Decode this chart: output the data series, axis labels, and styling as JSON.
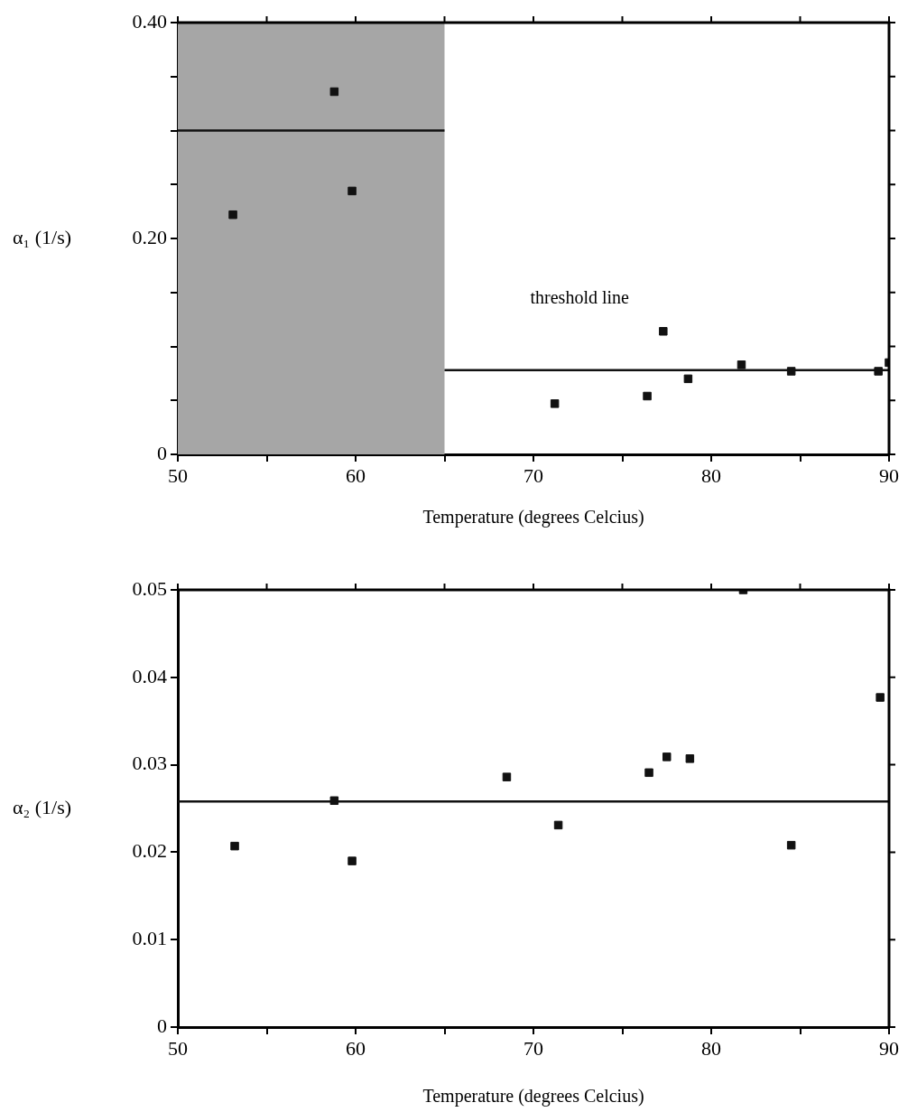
{
  "chart_data": [
    {
      "type": "scatter",
      "xlabel": "Temperature (degrees Celcius)",
      "ylabel": "α₁ (1/s)",
      "marker": "square",
      "legend": false,
      "grid": false,
      "xlim": [
        50,
        90
      ],
      "xticks": [
        50,
        {
          "value": 55,
          "label": null
        },
        60,
        {
          "value": 65,
          "label": null
        },
        70,
        {
          "value": 75,
          "label": null
        },
        80,
        {
          "value": 85,
          "label": null
        },
        90
      ],
      "ylim": [
        0,
        0.4
      ],
      "yticks": [
        0,
        {
          "value": 0.05,
          "label": null
        },
        {
          "value": 0.1,
          "label": null
        },
        {
          "value": 0.15,
          "label": null
        },
        {
          "value": 0.2,
          "label": "0.20"
        },
        {
          "value": 0.25,
          "label": null
        },
        {
          "value": 0.3,
          "label": null
        },
        {
          "value": 0.35,
          "label": null
        },
        {
          "value": 0.4,
          "label": "0.40"
        }
      ],
      "bands": [
        {
          "axis": "x",
          "from": 50,
          "to": 65,
          "color": "#a6a6a6"
        }
      ],
      "annotations": [
        "threshold line"
      ],
      "series": [
        {
          "type": "scatter",
          "color": "#111111",
          "x": [
            53.1,
            58.8,
            59.8,
            71.2,
            76.4,
            77.3,
            78.7,
            81.7,
            84.5,
            89.4,
            90.0
          ],
          "values": [
            0.222,
            0.336,
            0.244,
            0.047,
            0.054,
            0.114,
            0.07,
            0.083,
            0.077,
            0.077,
            0.085
          ]
        },
        {
          "type": "line",
          "color": "#111111",
          "marker": "none",
          "x": [
            50,
            65
          ],
          "values": [
            0.3,
            0.3
          ]
        },
        {
          "type": "line",
          "color": "#111111",
          "marker": "none",
          "x": [
            65,
            90
          ],
          "values": [
            0.078,
            0.078
          ]
        }
      ]
    },
    {
      "type": "scatter",
      "xlabel": "Temperature (degrees Celcius)",
      "ylabel": "α₂ (1/s)",
      "marker": "square",
      "legend": false,
      "grid": false,
      "xlim": [
        50,
        90
      ],
      "xticks": [
        50,
        {
          "value": 55,
          "label": null
        },
        60,
        {
          "value": 65,
          "label": null
        },
        70,
        {
          "value": 75,
          "label": null
        },
        80,
        {
          "value": 85,
          "label": null
        },
        90
      ],
      "ylim": [
        0,
        0.05
      ],
      "yticks": [
        0,
        0.01,
        0.02,
        0.03,
        0.04,
        0.05
      ],
      "ref_lines": [
        {
          "axis": "y",
          "value": 0.0258,
          "color": "#111111"
        }
      ],
      "series": [
        {
          "type": "scatter",
          "color": "#111111",
          "x": [
            53.2,
            58.8,
            59.8,
            68.5,
            71.4,
            76.5,
            77.5,
            78.8,
            81.8,
            84.5,
            89.5
          ],
          "values": [
            0.0207,
            0.0259,
            0.019,
            0.0286,
            0.0231,
            0.0291,
            0.0309,
            0.0307,
            0.05,
            0.0208,
            0.0377
          ]
        }
      ]
    }
  ]
}
